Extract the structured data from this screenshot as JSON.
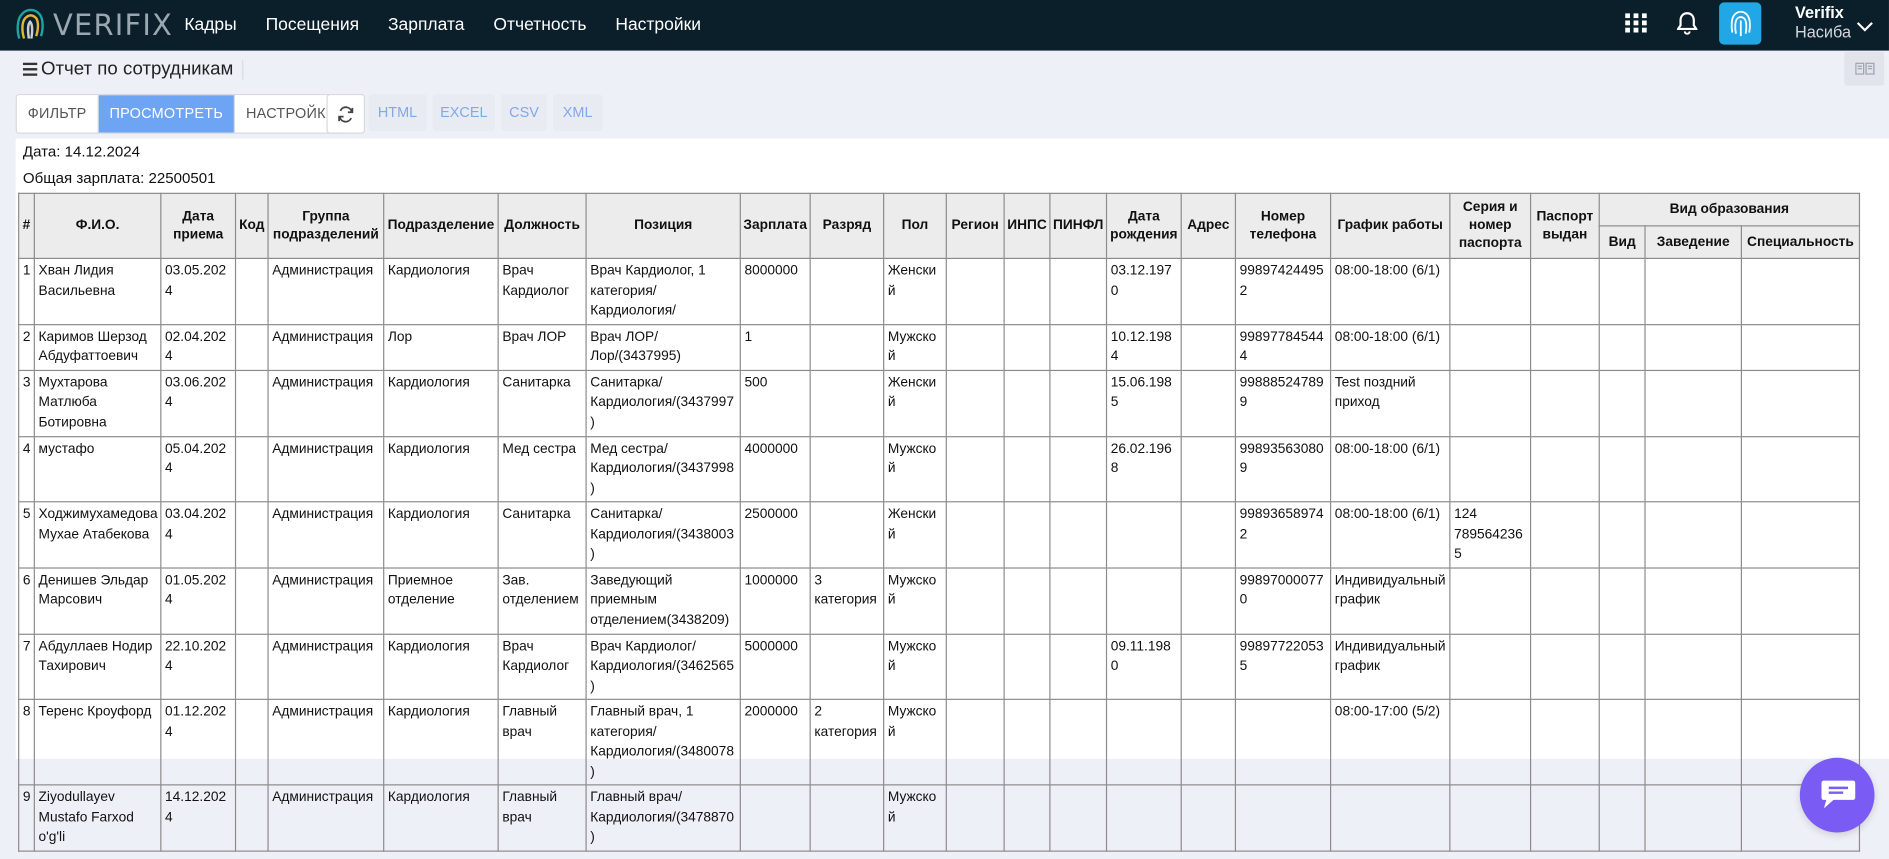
{
  "app": {
    "logo_text": "VERIFIX"
  },
  "nav": {
    "items": [
      "Кадры",
      "Посещения",
      "Зарплата",
      "Отчетность",
      "Настройки"
    ]
  },
  "user": {
    "name": "Verifix",
    "subtitle": "Насиба"
  },
  "icons": {
    "apps": "grid-icon",
    "notifications": "bell-icon",
    "biometric": "fingerprint-icon",
    "account": "chevron-down-icon",
    "menu": "hamburger-icon",
    "refresh": "refresh-icon",
    "chat": "chat-icon",
    "corner": "book-icon"
  },
  "page": {
    "title": "Отчет по сотрудникам"
  },
  "toolbar": {
    "filter_label": "ФИЛЬТР",
    "view_label": "ПРОСМОТРЕТЬ",
    "settings_label": "НАСТРОЙКИ",
    "export": [
      "HTML",
      "EXCEL",
      "CSV",
      "XML"
    ]
  },
  "colors": {
    "topbar": "#0b1f2b",
    "active_button": "#6ea4f4",
    "fingerprint_bg": "#22a7e6",
    "chat_bg": "#7a5cf5"
  },
  "report": {
    "date_line": "Дата: 14.12.2024",
    "salary_line": "Общая зарплата: 22500501",
    "headers": {
      "num": "#",
      "fio": "Ф.И.О.",
      "hire_date": "Дата приема",
      "code": "Код",
      "group": "Группа подразделений",
      "division": "Подразделение",
      "job": "Должность",
      "position": "Позиция",
      "salary": "Зарплата",
      "rank": "Разряд",
      "gender": "Пол",
      "region": "Регион",
      "inps": "ИНПС",
      "pinfl": "ПИНФЛ",
      "birth_date": "Дата рождения",
      "address": "Адрес",
      "phone": "Номер телефона",
      "schedule": "График работы",
      "passport": "Серия и номер паспорта",
      "passport_issued": "Паспорт выдан",
      "education": "Вид образования",
      "edu_type": "Вид",
      "edu_school": "Заведение",
      "edu_spec": "Специальность"
    },
    "rows": [
      [
        "1",
        "Хван Лидия Васильевна",
        "03.05.2024",
        "",
        "Администрация",
        "Кардиология",
        "Врач Кардиолог",
        "Врач Кардиолог, 1 категория/Кардиология/",
        "8000000",
        "",
        "Женский",
        "",
        "",
        "",
        "03.12.1970",
        "",
        "998974244952",
        "08:00-18:00 (6/1)",
        "",
        "",
        "",
        "",
        ""
      ],
      [
        "2",
        "Каримов Шерзод Абдуфаттоевич",
        "02.04.2024",
        "",
        "Администрация",
        "Лор",
        "Врач ЛОР",
        "Врач ЛОР/ Лор/(3437995)",
        "1",
        "",
        "Мужской",
        "",
        "",
        "",
        "10.12.1984",
        "",
        "998977845444",
        "08:00-18:00 (6/1)",
        "",
        "",
        "",
        "",
        ""
      ],
      [
        "3",
        "Мухтарова Матлюба Ботировна",
        "03.06.2024",
        "",
        "Администрация",
        "Кардиология",
        "Санитарка",
        "Санитарка/ Кардиология/(3437997)",
        "500",
        "",
        "Женский",
        "",
        "",
        "",
        "15.06.1985",
        "",
        "998885247899",
        "Test поздний приход",
        "",
        "",
        "",
        "",
        ""
      ],
      [
        "4",
        "мустафо",
        "05.04.2024",
        "",
        "Администрация",
        "Кардиология",
        "Мед сестра",
        "Мед сестра/ Кардиология/(3437998)",
        "4000000",
        "",
        "Мужской",
        "",
        "",
        "",
        "26.02.1968",
        "",
        "998935630809",
        "08:00-18:00 (6/1)",
        "",
        "",
        "",
        "",
        ""
      ],
      [
        "5",
        "Ходжимухамедова Мухае Атабекова",
        "03.04.2024",
        "",
        "Администрация",
        "Кардиология",
        "Санитарка",
        "Санитарка/ Кардиология/(3438003)",
        "2500000",
        "",
        "Женский",
        "",
        "",
        "",
        "",
        "",
        "998936589742",
        "08:00-18:00 (6/1)",
        "124 7895642365",
        "",
        "",
        "",
        ""
      ],
      [
        "6",
        "Денишев Эльдар Марсович",
        "01.05.2024",
        "",
        "Администрация",
        "Приемное отделение",
        "Зав. отделением",
        "Заведующий приемным отделением(3438209)",
        "1000000",
        "3 категория",
        "Мужской",
        "",
        "",
        "",
        "",
        "",
        "998970000770",
        "Индивидуальный график",
        "",
        "",
        "",
        "",
        ""
      ],
      [
        "7",
        "Абдуллаев Нодир Тахирович",
        "22.10.2024",
        "",
        "Администрация",
        "Кардиология",
        "Врач Кардиолог",
        "Врач Кардиолог/ Кардиология/(3462565)",
        "5000000",
        "",
        "Мужской",
        "",
        "",
        "",
        "09.11.1980",
        "",
        "998977220535",
        "Индивидуальный график",
        "",
        "",
        "",
        "",
        ""
      ],
      [
        "8",
        "Теренс Кроуфорд",
        "01.12.2024",
        "",
        "Администрация",
        "Кардиология",
        "Главный врач",
        "Главный врач, 1 категория/ Кардиология/(3480078)",
        "2000000",
        "2 категория",
        "Мужской",
        "",
        "",
        "",
        "",
        "",
        "",
        "08:00-17:00 (5/2)",
        "",
        "",
        "",
        "",
        ""
      ],
      [
        "9",
        "Ziyodullayev Mustafo Farxod o'g'li",
        "14.12.2024",
        "",
        "Администрация",
        "Кардиология",
        "Главный врач",
        "Главный врач/ Кардиология/(3478870)",
        "",
        "",
        "Мужской",
        "",
        "",
        "",
        "",
        "",
        "",
        "",
        "",
        "",
        "",
        "",
        ""
      ]
    ]
  }
}
